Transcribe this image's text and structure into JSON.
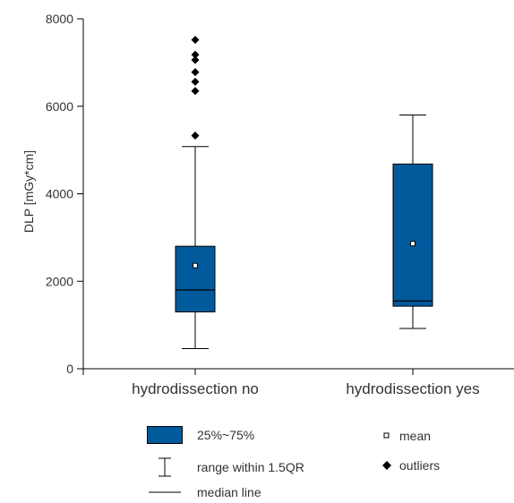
{
  "chart_data": {
    "type": "box",
    "ylabel": "DLP [mGy*cm]",
    "xlabel": "",
    "ylim": [
      0,
      8000
    ],
    "yticks": [
      0,
      2000,
      4000,
      6000,
      8000
    ],
    "categories": [
      "hydrodissection no",
      "hydrodissection yes"
    ],
    "box_color": "#005a9c",
    "boxes": [
      {
        "category": "hydrodissection no",
        "whisker_low": 460,
        "q1": 1300,
        "median": 1800,
        "q3": 2800,
        "whisker_high": 5080,
        "mean": 2360,
        "outliers": [
          5330,
          6350,
          6560,
          6780,
          7060,
          7180,
          7520
        ]
      },
      {
        "category": "hydrodissection yes",
        "whisker_low": 920,
        "q1": 1430,
        "median": 1550,
        "q3": 4680,
        "whisker_high": 5800,
        "mean": 2860,
        "outliers": []
      }
    ]
  },
  "legend": {
    "box": "25%~75%",
    "range": "range within 1.5QR",
    "median": "median line",
    "mean": "mean",
    "outliers": "outliers"
  }
}
